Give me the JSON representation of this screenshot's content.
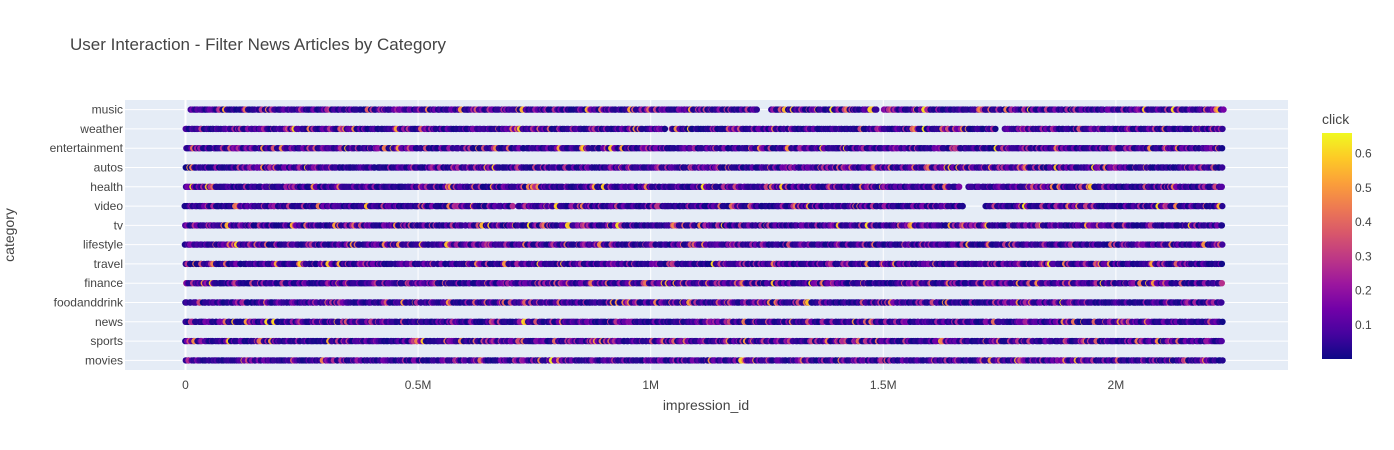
{
  "chart_data": {
    "type": "scatter",
    "title": "User Interaction - Filter News Articles by Category",
    "xlabel": "impression_id",
    "ylabel": "category",
    "xlim": [
      -130000,
      2370000
    ],
    "x_ticks": [
      {
        "value": 0,
        "label": "0"
      },
      {
        "value": 500000,
        "label": "0.5M"
      },
      {
        "value": 1000000,
        "label": "1M"
      },
      {
        "value": 1500000,
        "label": "1.5M"
      },
      {
        "value": 2000000,
        "label": "2M"
      }
    ],
    "categories": [
      "movies",
      "sports",
      "news",
      "foodanddrink",
      "finance",
      "travel",
      "lifestyle",
      "tv",
      "video",
      "health",
      "autos",
      "entertainment",
      "weather",
      "music"
    ],
    "rows": [
      {
        "category": "movies",
        "x_range": [
          0,
          2230000
        ],
        "gaps": []
      },
      {
        "category": "sports",
        "x_range": [
          0,
          2230000
        ],
        "gaps": []
      },
      {
        "category": "news",
        "x_range": [
          0,
          2230000
        ],
        "gaps": []
      },
      {
        "category": "foodanddrink",
        "x_range": [
          0,
          2230000
        ],
        "gaps": []
      },
      {
        "category": "finance",
        "x_range": [
          0,
          2230000
        ],
        "gaps": []
      },
      {
        "category": "travel",
        "x_range": [
          0,
          2230000
        ],
        "gaps": []
      },
      {
        "category": "lifestyle",
        "x_range": [
          0,
          2230000
        ],
        "gaps": []
      },
      {
        "category": "tv",
        "x_range": [
          0,
          2230000
        ],
        "gaps": []
      },
      {
        "category": "video",
        "x_range": [
          0,
          2230000
        ],
        "gaps": [
          [
            705000,
            715000
          ],
          [
            1675000,
            1715000
          ]
        ]
      },
      {
        "category": "health",
        "x_range": [
          0,
          2230000
        ],
        "gaps": [
          [
            1665000,
            1680000
          ]
        ]
      },
      {
        "category": "autos",
        "x_range": [
          0,
          2230000
        ],
        "gaps": []
      },
      {
        "category": "entertainment",
        "x_range": [
          0,
          2230000
        ],
        "gaps": []
      },
      {
        "category": "weather",
        "x_range": [
          0,
          2230000
        ],
        "gaps": [
          [
            1035000,
            1045000
          ],
          [
            1745000,
            1760000
          ]
        ]
      },
      {
        "category": "music",
        "x_range": [
          10000,
          2230000
        ],
        "gaps": [
          [
            1235000,
            1255000
          ],
          [
            1490000,
            1500000
          ]
        ]
      }
    ],
    "colorbar": {
      "title": "click",
      "range": [
        0,
        0.66
      ],
      "ticks": [
        {
          "value": 0.1,
          "label": "0.1"
        },
        {
          "value": 0.2,
          "label": "0.2"
        },
        {
          "value": 0.3,
          "label": "0.3"
        },
        {
          "value": 0.4,
          "label": "0.4"
        },
        {
          "value": 0.5,
          "label": "0.5"
        },
        {
          "value": 0.6,
          "label": "0.6"
        }
      ],
      "colorscale": [
        "#0d0887",
        "#46039f",
        "#7201a8",
        "#9c179e",
        "#bd3786",
        "#d8576b",
        "#ed7953",
        "#fb9f3a",
        "#fdca26",
        "#f0f921"
      ]
    },
    "grid": true,
    "plot_bgcolor": "#e5ecf6"
  }
}
